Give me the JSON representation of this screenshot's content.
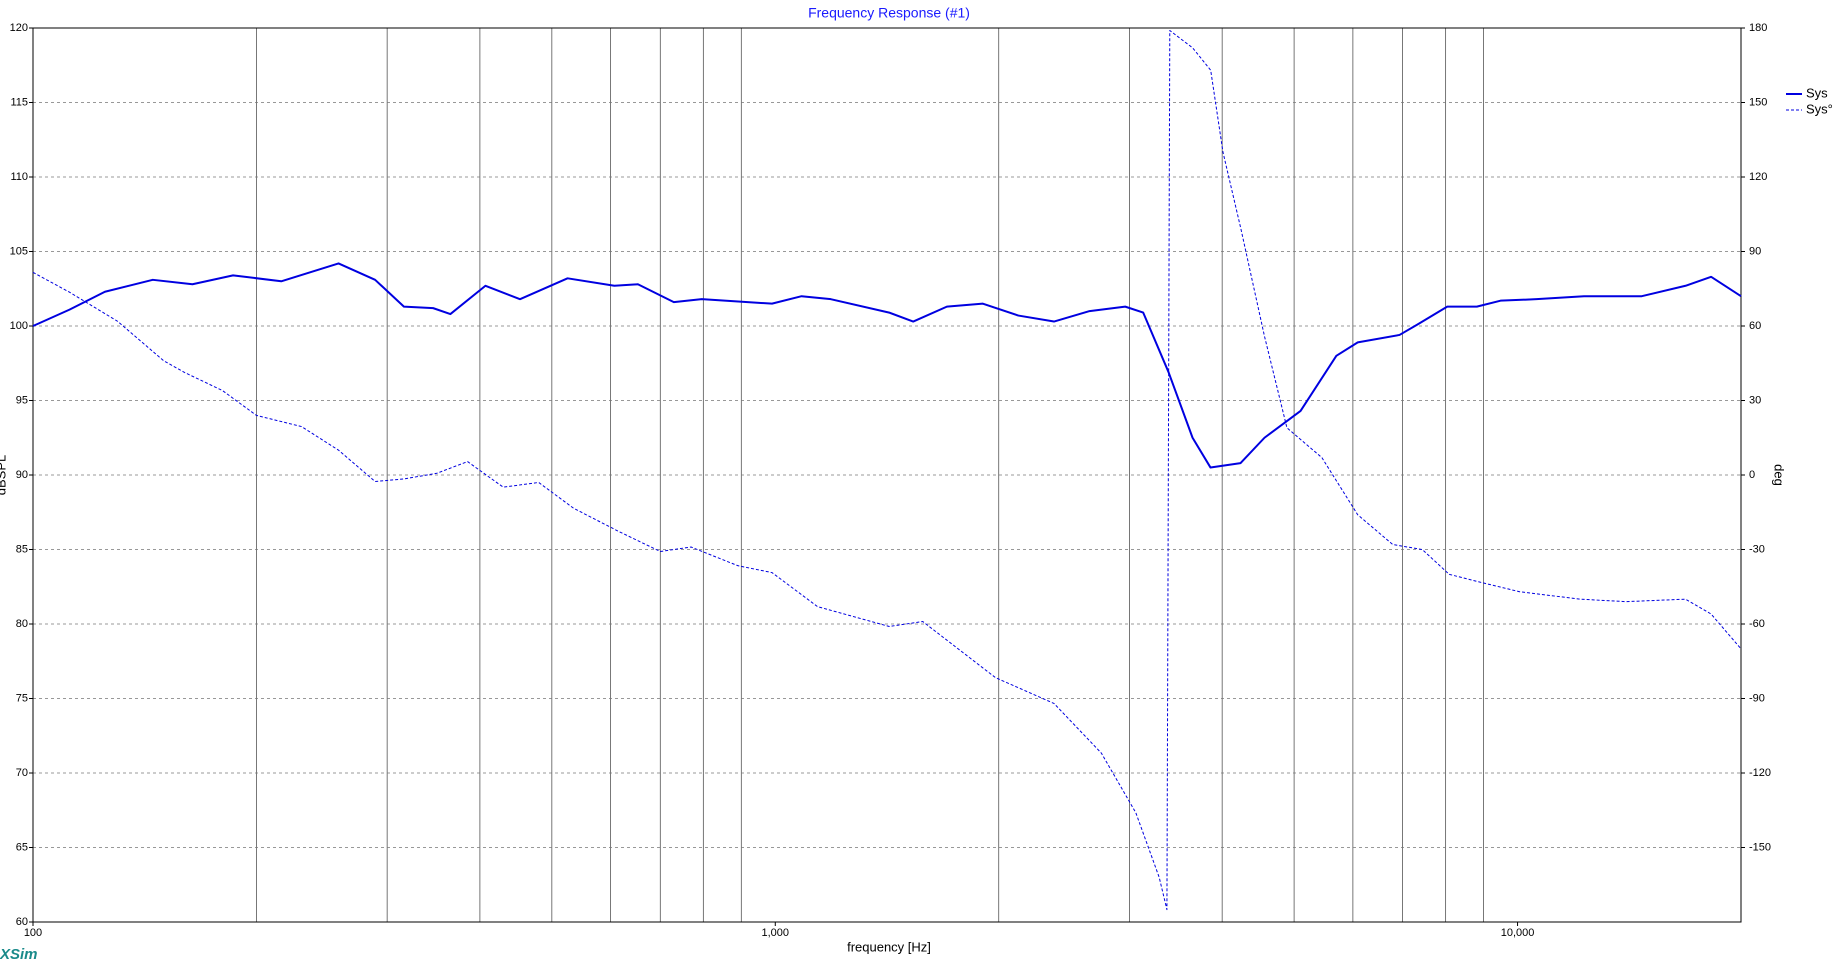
{
  "chart_data": {
    "type": "line",
    "title": "Frequency Response (#1)",
    "xlabel": "frequency [Hz]",
    "ylabel": "dBSPL",
    "y2label": "deg",
    "watermark": "XSim",
    "xscale": "log",
    "xlim": [
      100,
      20000
    ],
    "xticks": [
      100,
      {
        "value": 1000,
        "label": "1,000"
      },
      {
        "value": 10000,
        "label": "10,000"
      }
    ],
    "xgrid": [
      200,
      300,
      400,
      500,
      600,
      700,
      800,
      900,
      2000,
      3000,
      4000,
      5000,
      6000,
      7000,
      8000,
      9000
    ],
    "ylim": [
      60,
      120
    ],
    "yticks": [
      60,
      65,
      70,
      75,
      80,
      85,
      90,
      95,
      100,
      105,
      110,
      115,
      120
    ],
    "y2lim": [
      -180,
      180
    ],
    "y2ticks": [
      -150,
      -120,
      -90,
      -60,
      -30,
      0,
      30,
      60,
      90,
      120,
      150,
      180
    ],
    "grid": true,
    "legend": "top-right",
    "series": [
      {
        "name": "Sys",
        "color": "#0000e0",
        "linestyle": "solid",
        "axis": "y",
        "x": [
          100,
          112,
          125,
          145,
          164,
          186,
          216,
          258,
          289,
          316,
          346,
          365,
          407,
          453,
          525,
          607,
          653,
          730,
          796,
          990,
          1085,
          1188,
          1424,
          1534,
          1703,
          1904,
          2126,
          2374,
          2651,
          2961,
          3131,
          3387,
          3649,
          3858,
          4235,
          4561,
          5101,
          5700,
          6091,
          6934,
          7331,
          8040,
          8814,
          9486,
          10610,
          12290,
          14700,
          16840,
          18230,
          20000
        ],
        "values": [
          100.0,
          101.1,
          102.3,
          103.1,
          102.8,
          103.4,
          103.0,
          104.2,
          103.1,
          101.3,
          101.2,
          100.8,
          102.7,
          101.8,
          103.2,
          102.7,
          102.8,
          101.6,
          101.8,
          101.5,
          102.0,
          101.8,
          100.9,
          100.3,
          101.3,
          101.5,
          100.7,
          100.3,
          101.0,
          101.3,
          100.9,
          96.9,
          92.5,
          90.5,
          90.8,
          92.5,
          94.3,
          98.0,
          98.9,
          99.4,
          100.1,
          101.3,
          101.3,
          101.7,
          101.8,
          102.0,
          102.0,
          102.7,
          103.3,
          102.0
        ]
      },
      {
        "name": "Sys°",
        "color": "#0000e0",
        "linestyle": "dashed",
        "axis": "y2",
        "x": [
          100,
          112,
          130,
          150,
          160,
          180,
          200,
          230,
          258,
          289,
          316,
          350,
          385,
          430,
          480,
          535,
          616,
          700,
          770,
          890,
          990,
          1140,
          1424,
          1580,
          1980,
          2374,
          2750,
          3060,
          3290,
          3370,
          3400,
          3650,
          3860,
          4010,
          4240,
          4560,
          4890,
          5450,
          6090,
          6790,
          7440,
          8090,
          8860,
          10060,
          12140,
          14000,
          16840,
          18230,
          20000
        ],
        "values": [
          81.6,
          73.6,
          61.9,
          46,
          41.3,
          34,
          24,
          19.5,
          10,
          -2.6,
          -1.6,
          0.7,
          5.4,
          -4.9,
          -3,
          -13.4,
          -22.8,
          -30.8,
          -29,
          -36.5,
          -39.3,
          -53,
          -61,
          -59,
          -81.6,
          -92,
          -112,
          -136,
          -162,
          -175,
          179,
          172,
          163,
          130,
          99,
          56,
          19,
          7,
          -16,
          -28,
          -30,
          -40,
          -43,
          -47,
          -50,
          -51,
          -50,
          -56,
          -70
        ]
      }
    ]
  }
}
